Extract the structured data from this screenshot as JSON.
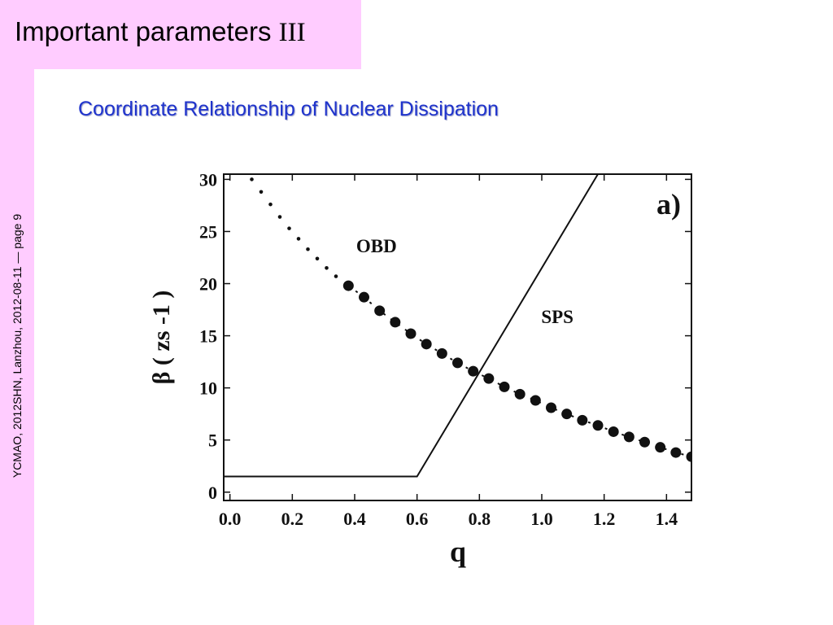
{
  "slide": {
    "title": "Important parameters ",
    "title_numeral": "III",
    "subtitle": "Coordinate Relationship of Nuclear Dissipation",
    "footer_vertical": "YCMAO, 2012SHN, Lanzhou, 2012-08-11 — page 9"
  },
  "colors": {
    "accent_pink": "#ffccff",
    "subtitle_blue": "#1f33cc",
    "ink": "#111111"
  },
  "chart_data": {
    "type": "line",
    "panel_label": "a)",
    "xlabel": "q",
    "ylabel": "β ( zs -1 )",
    "xlim": [
      -0.02,
      1.48
    ],
    "ylim": [
      -0.8,
      30.5
    ],
    "x_ticks": [
      {
        "value": 0.0,
        "label": "0.0"
      },
      {
        "value": 0.2,
        "label": "0.2"
      },
      {
        "value": 0.4,
        "label": "0.4"
      },
      {
        "value": 0.6,
        "label": "0.6"
      },
      {
        "value": 0.8,
        "label": "0.8"
      },
      {
        "value": 1.0,
        "label": "1.0"
      },
      {
        "value": 1.2,
        "label": "1.2"
      },
      {
        "value": 1.4,
        "label": "1.4"
      }
    ],
    "y_ticks": [
      {
        "value": 0,
        "label": "0"
      },
      {
        "value": 5,
        "label": "5"
      },
      {
        "value": 10,
        "label": "10"
      },
      {
        "value": 15,
        "label": "15"
      },
      {
        "value": 20,
        "label": "20"
      },
      {
        "value": 25,
        "label": "25"
      },
      {
        "value": 30,
        "label": "30"
      }
    ],
    "series": [
      {
        "name": "OBD",
        "style": "dotted-small",
        "x": [
          0.07,
          0.1,
          0.13,
          0.16,
          0.19,
          0.22,
          0.25,
          0.28,
          0.31,
          0.34
        ],
        "y": [
          30.0,
          28.8,
          27.6,
          26.4,
          25.3,
          24.3,
          23.3,
          22.4,
          21.5,
          20.7
        ]
      },
      {
        "name": "OBD",
        "style": "dots-large",
        "x": [
          0.38,
          0.43,
          0.48,
          0.53,
          0.58,
          0.63,
          0.68,
          0.73,
          0.78,
          0.83,
          0.88,
          0.93,
          0.98,
          1.03,
          1.08,
          1.13,
          1.18,
          1.23,
          1.28,
          1.33,
          1.38,
          1.43,
          1.48
        ],
        "y": [
          19.8,
          18.7,
          17.4,
          16.3,
          15.2,
          14.2,
          13.3,
          12.4,
          11.6,
          10.9,
          10.1,
          9.4,
          8.8,
          8.1,
          7.5,
          6.9,
          6.4,
          5.8,
          5.3,
          4.8,
          4.3,
          3.8,
          3.4
        ]
      },
      {
        "name": "SPS",
        "style": "solid",
        "x": [
          -0.02,
          0.6,
          1.18
        ],
        "y": [
          1.5,
          1.5,
          30.5
        ]
      }
    ],
    "annotations": [
      {
        "text": "OBD",
        "x": 0.47,
        "y": 23.0
      },
      {
        "text": "SPS",
        "x": 1.05,
        "y": 16.2
      }
    ],
    "grid": false,
    "legend": "none"
  }
}
